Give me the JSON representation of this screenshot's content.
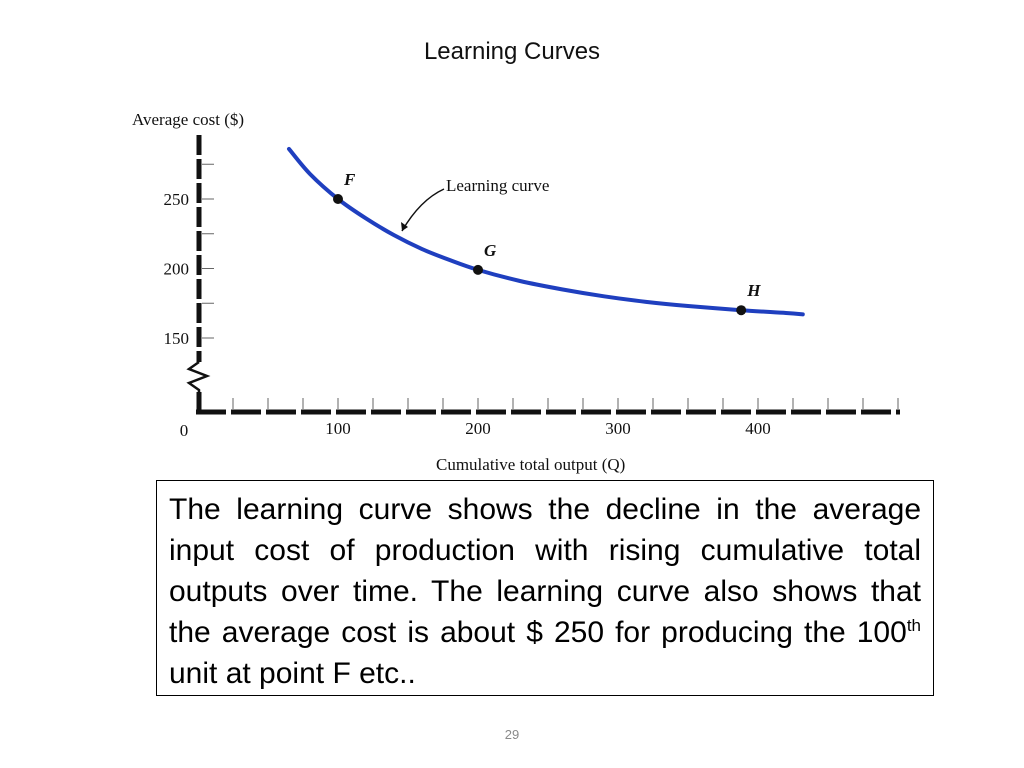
{
  "slide": {
    "title": "Learning Curves",
    "page_number": "29"
  },
  "caption": {
    "part1": "The learning curve shows the decline in the average input cost of production with rising cumulative total outputs over time. The learning curve also shows that the average cost is about $ 250 for producing the 100",
    "superscript": "th",
    "part2": " unit at point F etc.."
  },
  "chart_data": {
    "type": "line",
    "title": "",
    "xlabel": "Cumulative total output (Q)",
    "ylabel": "Average cost ($)",
    "xlim": [
      0,
      510
    ],
    "ylim": [
      150,
      270
    ],
    "x_ticks": [
      100,
      200,
      300,
      400
    ],
    "x_tick_labels": [
      "100",
      "200",
      "300",
      "400"
    ],
    "x_origin_label": "0",
    "y_ticks": [
      150,
      200,
      250
    ],
    "y_tick_labels": [
      "150",
      "200",
      "250"
    ],
    "y_axis_break": true,
    "curve_label": "Learning curve",
    "series": [
      {
        "name": "Learning curve",
        "color": "#1f3fbf",
        "x": [
          65,
          80,
          100,
          120,
          140,
          160,
          180,
          200,
          230,
          260,
          290,
          320,
          350,
          388,
          420,
          432
        ],
        "y": [
          286,
          268,
          250,
          236,
          224,
          214,
          206,
          199,
          191,
          185,
          180,
          176,
          173,
          170,
          168,
          167
        ]
      }
    ],
    "points": [
      {
        "label": "F",
        "x": 100,
        "y": 250
      },
      {
        "label": "G",
        "x": 200,
        "y": 199
      },
      {
        "label": "H",
        "x": 388,
        "y": 170
      }
    ]
  }
}
